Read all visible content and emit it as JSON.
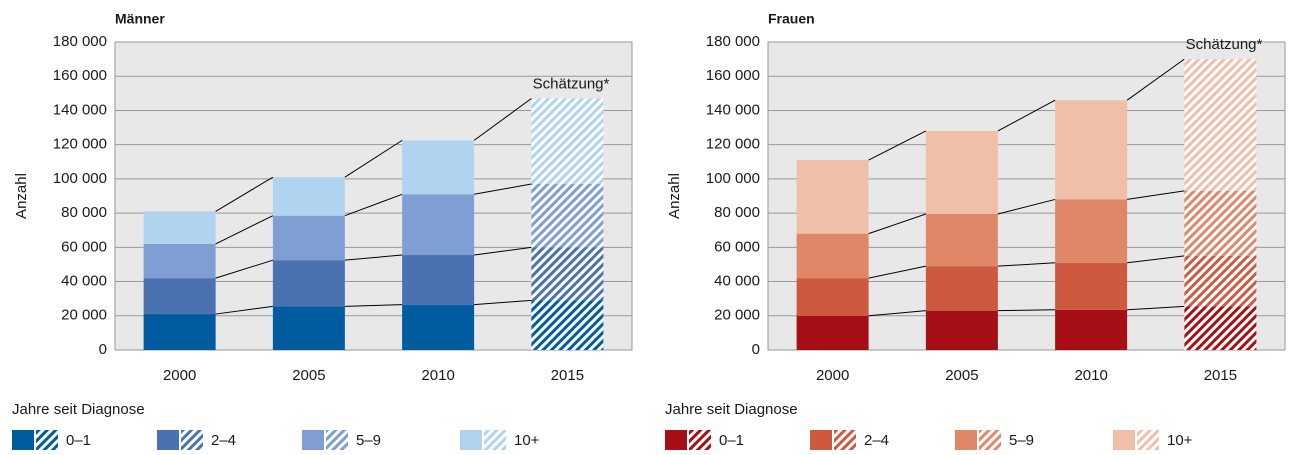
{
  "chart_data": [
    {
      "type": "bar",
      "stacked": true,
      "title": "Männer",
      "ylabel": "Anzahl",
      "annotation": "Schätzung*",
      "legend_title": "Jahre seit Diagnose",
      "categories": [
        "2000",
        "2005",
        "2010",
        "2015"
      ],
      "estimate": [
        false,
        false,
        false,
        true
      ],
      "series": [
        {
          "name": "0–1",
          "color": "#005b9f",
          "values": [
            21000,
            25500,
            26500,
            29000
          ]
        },
        {
          "name": "2–4",
          "color": "#4a72b0",
          "values": [
            21000,
            27000,
            29000,
            31000
          ]
        },
        {
          "name": "5–9",
          "color": "#7f9fd4",
          "values": [
            20000,
            26000,
            35500,
            37000
          ]
        },
        {
          "name": "10+",
          "color": "#b0d4f0",
          "values": [
            19000,
            22500,
            31500,
            50000
          ]
        }
      ],
      "ylim": [
        0,
        180000
      ],
      "yticks": [
        0,
        {
          "value": 20000,
          "label": "20 000"
        },
        {
          "value": 40000,
          "label": "40 000"
        },
        {
          "value": 60000,
          "label": "60 000"
        },
        {
          "value": 80000,
          "label": "80 000"
        },
        {
          "value": 100000,
          "label": "100 000"
        },
        {
          "value": 120000,
          "label": "120 000"
        },
        {
          "value": 140000,
          "label": "140 000"
        },
        {
          "value": 160000,
          "label": "160 000"
        },
        {
          "value": 180000,
          "label": "180 000"
        }
      ],
      "grid": true
    },
    {
      "type": "bar",
      "stacked": true,
      "title": "Frauen",
      "ylabel": "Anzahl",
      "annotation": "Schätzung*",
      "legend_title": "Jahre seit Diagnose",
      "categories": [
        "2000",
        "2005",
        "2010",
        "2015"
      ],
      "estimate": [
        false,
        false,
        false,
        true
      ],
      "series": [
        {
          "name": "0–1",
          "color": "#a50f15",
          "values": [
            20000,
            23000,
            23500,
            25500
          ]
        },
        {
          "name": "2–4",
          "color": "#cd5a40",
          "values": [
            22000,
            26000,
            27500,
            29500
          ]
        },
        {
          "name": "5–9",
          "color": "#e0876a",
          "values": [
            26000,
            30500,
            37000,
            38000
          ]
        },
        {
          "name": "10+",
          "color": "#f0bfa8",
          "values": [
            43000,
            48500,
            58000,
            77000
          ]
        }
      ],
      "ylim": [
        0,
        180000
      ],
      "yticks": [
        0,
        {
          "value": 20000,
          "label": "20 000"
        },
        {
          "value": 40000,
          "label": "40 000"
        },
        {
          "value": 60000,
          "label": "60 000"
        },
        {
          "value": 80000,
          "label": "80 000"
        },
        {
          "value": 100000,
          "label": "100 000"
        },
        {
          "value": 120000,
          "label": "120 000"
        },
        {
          "value": 140000,
          "label": "140 000"
        },
        {
          "value": 160000,
          "label": "160 000"
        },
        {
          "value": 180000,
          "label": "180 000"
        }
      ],
      "grid": true
    }
  ]
}
